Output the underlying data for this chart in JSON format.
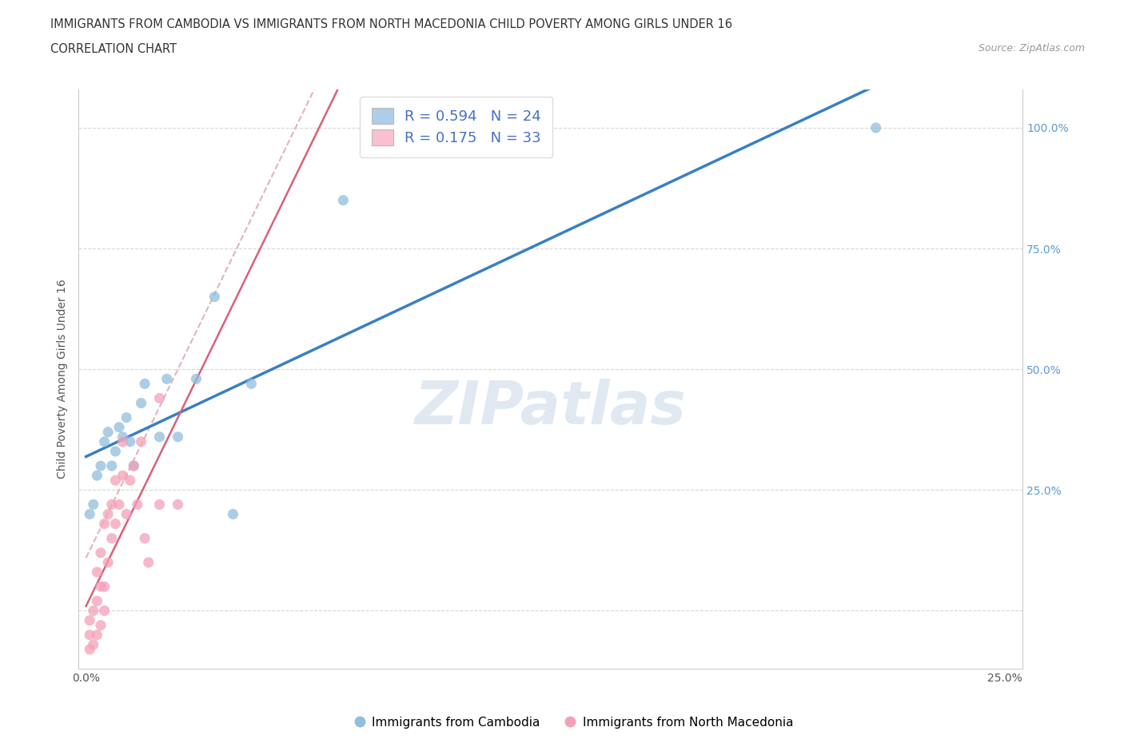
{
  "title_line1": "IMMIGRANTS FROM CAMBODIA VS IMMIGRANTS FROM NORTH MACEDONIA CHILD POVERTY AMONG GIRLS UNDER 16",
  "title_line2": "CORRELATION CHART",
  "source_text": "Source: ZipAtlas.com",
  "ylabel": "Child Poverty Among Girls Under 16",
  "xlim": [
    -0.002,
    0.255
  ],
  "ylim": [
    -0.12,
    1.08
  ],
  "x_tick_pos": [
    0.0,
    0.05,
    0.1,
    0.15,
    0.2,
    0.25
  ],
  "x_tick_labels": [
    "0.0%",
    "",
    "",
    "",
    "",
    "25.0%"
  ],
  "y_tick_pos": [
    0.0,
    0.25,
    0.5,
    0.75,
    1.0
  ],
  "y_tick_labels": [
    "",
    "25.0%",
    "50.0%",
    "75.0%",
    "100.0%"
  ],
  "cambodia_scatter_color": "#91bedd",
  "north_macedonia_scatter_color": "#f4a0b8",
  "cambodia_patch_color": "#aecde8",
  "north_macedonia_patch_color": "#f8c0d0",
  "trend_cambodia_color": "#3a7fc1",
  "trend_north_macedonia_solid_color": "#d9607a",
  "trend_north_macedonia_dashed_color": "#d9a0b0",
  "legend_label_cambodia": "Immigrants from Cambodia",
  "legend_label_north_macedonia": "Immigrants from North Macedonia",
  "watermark": "ZIPatlas",
  "R_cambodia": "0.594",
  "N_cambodia": "24",
  "R_north_macedonia": "0.175",
  "N_north_macedonia": "33",
  "cambodia_x": [
    0.001,
    0.002,
    0.003,
    0.004,
    0.005,
    0.006,
    0.007,
    0.008,
    0.009,
    0.01,
    0.011,
    0.012,
    0.013,
    0.015,
    0.016,
    0.02,
    0.022,
    0.025,
    0.03,
    0.035,
    0.04,
    0.045,
    0.07,
    0.215
  ],
  "cambodia_y": [
    0.2,
    0.22,
    0.28,
    0.3,
    0.35,
    0.37,
    0.3,
    0.33,
    0.38,
    0.36,
    0.4,
    0.35,
    0.3,
    0.43,
    0.47,
    0.36,
    0.48,
    0.36,
    0.48,
    0.65,
    0.2,
    0.47,
    0.85,
    1.0
  ],
  "north_macedonia_x": [
    0.001,
    0.001,
    0.001,
    0.002,
    0.002,
    0.003,
    0.003,
    0.003,
    0.004,
    0.004,
    0.004,
    0.005,
    0.005,
    0.005,
    0.006,
    0.006,
    0.007,
    0.007,
    0.008,
    0.008,
    0.009,
    0.01,
    0.01,
    0.011,
    0.012,
    0.013,
    0.014,
    0.015,
    0.016,
    0.017,
    0.02,
    0.02,
    0.025
  ],
  "north_macedonia_y": [
    -0.08,
    -0.05,
    -0.02,
    -0.07,
    0.0,
    -0.05,
    0.02,
    0.08,
    -0.03,
    0.05,
    0.12,
    0.0,
    0.05,
    0.18,
    0.1,
    0.2,
    0.15,
    0.22,
    0.18,
    0.27,
    0.22,
    0.28,
    0.35,
    0.2,
    0.27,
    0.3,
    0.22,
    0.35,
    0.15,
    0.1,
    0.22,
    0.44,
    0.22
  ]
}
